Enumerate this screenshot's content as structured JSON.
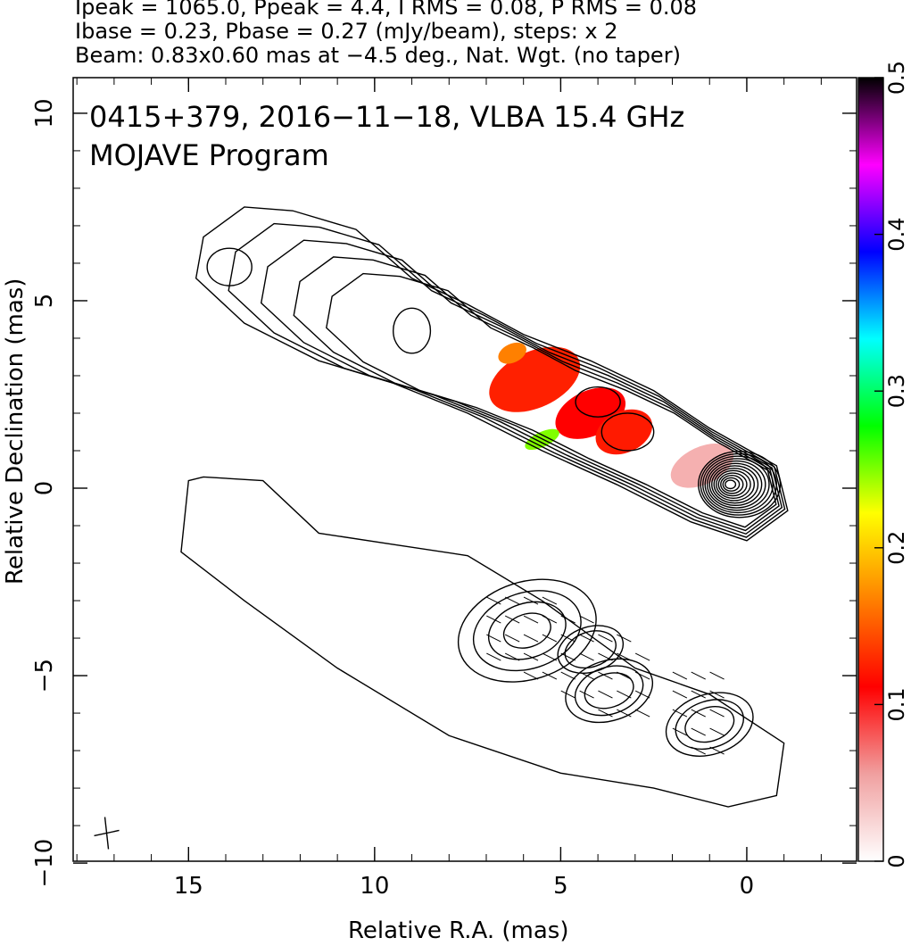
{
  "header": {
    "line1": "Ipeak = 1065.0, Ppeak = 4.4, I RMS = 0.08, P RMS = 0.08",
    "line2": "Ibase = 0.23, Pbase = 0.27 (mJy/beam), steps: x 2",
    "line3": "Beam: 0.83x0.60 mas at −4.5 deg., Nat. Wgt. (no taper)"
  },
  "plot_title": {
    "line1": "0415+379, 2016−11−18, VLBA 15.4 GHz",
    "line2": "MOJAVE Program"
  },
  "chart_data": {
    "type": "contour_map",
    "xlabel": "Relative R.A. (mas)",
    "ylabel": "Relative Declination (mas)",
    "xlim": [
      18.1,
      -2.95
    ],
    "ylim": [
      -9.95,
      10.95
    ],
    "x_ticks": [
      15,
      10,
      5,
      0
    ],
    "x_tick_labels": [
      "15",
      "10",
      "5",
      "0"
    ],
    "y_ticks": [
      10,
      5,
      0,
      -5,
      -10
    ],
    "y_tick_labels": [
      "10",
      "5",
      "0",
      "−5",
      "−10"
    ],
    "grid": false,
    "colorbar": {
      "range": [
        0,
        0.5
      ],
      "ticks": [
        0,
        0.1,
        0.2,
        0.3,
        0.4,
        0.5
      ],
      "tick_labels": [
        "0",
        "0.1",
        "0.2",
        "0.3",
        "0.4",
        "0.5"
      ],
      "colors": [
        "#ffffff",
        "#f0a0a0",
        "#ff0000",
        "#ff8000",
        "#ffff00",
        "#00ff00",
        "#00ffff",
        "#0000ff",
        "#ff00ff",
        "#000000"
      ]
    },
    "core_position": [
      0.2,
      0.1
    ],
    "upper_image": {
      "description_values": "total intensity contours with fractional polarization colors",
      "contour_base_mJy_per_beam": 0.23,
      "contour_step_factor": 2,
      "jet_axis_points": [
        [
          14,
          6.5
        ],
        [
          12,
          5.8
        ],
        [
          9,
          4.5
        ],
        [
          6,
          3
        ],
        [
          4,
          2
        ],
        [
          2,
          1
        ],
        [
          0.2,
          0.1
        ]
      ]
    },
    "lower_image": {
      "description_values": "polarized intensity contours with EVPA ticks",
      "contour_base_mJy_per_beam": 0.27,
      "contour_step_factor": 2,
      "offset_dec": -6.5
    },
    "beam": {
      "major": 0.83,
      "minor": 0.6,
      "pa_deg": -4.5
    }
  }
}
